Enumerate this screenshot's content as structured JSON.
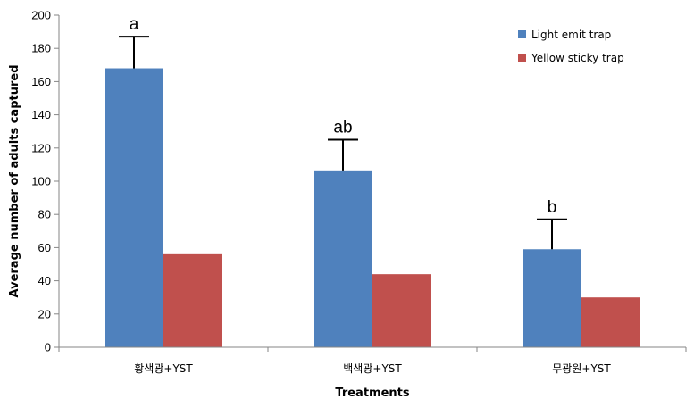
{
  "chart_data": {
    "type": "bar",
    "categories": [
      "황색광+YST",
      "백색광+YST",
      "무광원+YST"
    ],
    "series": [
      {
        "name": "Light emit trap",
        "color": "#4f81bd",
        "values": [
          168,
          106,
          59
        ],
        "error_plus": [
          19,
          19,
          18
        ]
      },
      {
        "name": "Yellow sticky trap",
        "color": "#c0504d",
        "values": [
          56,
          44,
          30
        ]
      }
    ],
    "significance_labels": [
      "a",
      "ab",
      "b"
    ],
    "xlabel": "Treatments",
    "ylabel": "Average number of adults captured",
    "ylim": [
      0,
      200
    ],
    "yticks": [
      0,
      20,
      40,
      60,
      80,
      100,
      120,
      140,
      160,
      180,
      200
    ],
    "grid": false,
    "legend_position": "top-right"
  }
}
